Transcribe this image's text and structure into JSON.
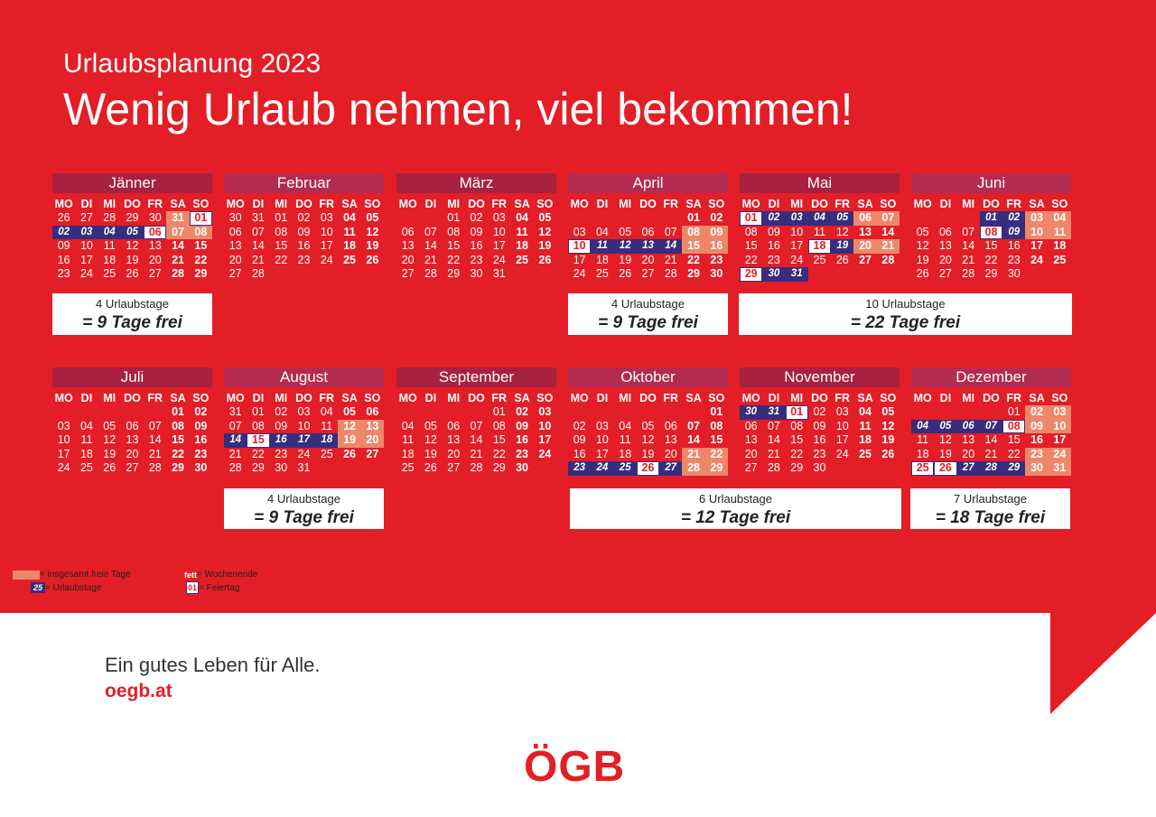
{
  "subtitle": "Urlaubsplanung 2023",
  "title": "Wenig Urlaub nehmen, viel bekommen!",
  "weekdays": [
    "MO",
    "DI",
    "MI",
    "DO",
    "FR",
    "SA",
    "SO"
  ],
  "colors": {
    "background": "#e31e26",
    "free": "#ee8769",
    "vacation": "#3a2c7c",
    "month_band_top": "#a8213f",
    "month_band_bottom": "#b02648"
  },
  "months": [
    {
      "name": "Jänner",
      "weeks": [
        [
          "26",
          "27",
          "28",
          "29",
          "30",
          "31:fb",
          "01:hb"
        ],
        [
          "02:u",
          "03:u",
          "04:u",
          "05:u",
          "06:hb",
          "07:fb",
          "08:fb"
        ],
        [
          "09",
          "10",
          "11",
          "12",
          "13",
          "14:b",
          "15:b"
        ],
        [
          "16",
          "17",
          "18",
          "19",
          "20",
          "21:b",
          "22:b"
        ],
        [
          "23",
          "24",
          "25",
          "26",
          "27",
          "28:b",
          "29:b"
        ]
      ]
    },
    {
      "name": "Februar",
      "weeks": [
        [
          "30",
          "31",
          "01",
          "02",
          "03",
          "04:b",
          "05:b"
        ],
        [
          "06",
          "07",
          "08",
          "09",
          "10",
          "11:b",
          "12:b"
        ],
        [
          "13",
          "14",
          "15",
          "16",
          "17",
          "18:b",
          "19:b"
        ],
        [
          "20",
          "21",
          "22",
          "23",
          "24",
          "25:b",
          "26:b"
        ],
        [
          "27",
          "28",
          "",
          "",
          "",
          "",
          ""
        ]
      ]
    },
    {
      "name": "März",
      "weeks": [
        [
          "",
          "",
          "01",
          "02",
          "03",
          "04:b",
          "05:b"
        ],
        [
          "06",
          "07",
          "08",
          "09",
          "10",
          "11:b",
          "12:b"
        ],
        [
          "13",
          "14",
          "15",
          "16",
          "17",
          "18:b",
          "19:b"
        ],
        [
          "20",
          "21",
          "22",
          "23",
          "24",
          "25:b",
          "26:b"
        ],
        [
          "27",
          "28",
          "29",
          "30",
          "31",
          "",
          ""
        ]
      ]
    },
    {
      "name": "April",
      "weeks": [
        [
          "",
          "",
          "",
          "",
          "",
          "01:b",
          "02:b"
        ],
        [
          "03",
          "04",
          "05",
          "06",
          "07",
          "08:fb",
          "09:fb"
        ],
        [
          "10:hb",
          "11:u",
          "12:u",
          "13:u",
          "14:u",
          "15:fb",
          "16:fb"
        ],
        [
          "17",
          "18",
          "19",
          "20",
          "21",
          "22:b",
          "23:b"
        ],
        [
          "24",
          "25",
          "26",
          "27",
          "28",
          "29:b",
          "30:b"
        ]
      ]
    },
    {
      "name": "Mai",
      "weeks": [
        [
          "01:hb",
          "02:u",
          "03:u",
          "04:u",
          "05:u",
          "06:fb",
          "07:fb"
        ],
        [
          "08",
          "09",
          "10",
          "11",
          "12",
          "13:b",
          "14:b"
        ],
        [
          "15",
          "16",
          "17",
          "18:hb",
          "19:u",
          "20:fb",
          "21:fb"
        ],
        [
          "22",
          "23",
          "24",
          "25",
          "26",
          "27:b",
          "28:b"
        ],
        [
          "29:hb",
          "30:u",
          "31:u",
          "",
          "",
          "",
          ""
        ]
      ]
    },
    {
      "name": "Juni",
      "weeks": [
        [
          "",
          "",
          "",
          "01:u",
          "02:u",
          "03:fb",
          "04:fb"
        ],
        [
          "05",
          "06",
          "07",
          "08:hb",
          "09:u",
          "10:fb",
          "11:fb"
        ],
        [
          "12",
          "13",
          "14",
          "15",
          "16",
          "17:b",
          "18:b"
        ],
        [
          "19",
          "20",
          "21",
          "22",
          "23",
          "24:b",
          "25:b"
        ],
        [
          "26",
          "27",
          "28",
          "29",
          "30",
          "",
          ""
        ]
      ]
    },
    {
      "name": "Juli",
      "weeks": [
        [
          "",
          "",
          "",
          "",
          "",
          "01:b",
          "02:b"
        ],
        [
          "03",
          "04",
          "05",
          "06",
          "07",
          "08:b",
          "09:b"
        ],
        [
          "10",
          "11",
          "12",
          "13",
          "14",
          "15:b",
          "16:b"
        ],
        [
          "17",
          "18",
          "19",
          "20",
          "21",
          "22:b",
          "23:b"
        ],
        [
          "24",
          "25",
          "26",
          "27",
          "28",
          "29:b",
          "30:b"
        ]
      ]
    },
    {
      "name": "August",
      "weeks": [
        [
          "31",
          "01",
          "02",
          "03",
          "04",
          "05:b",
          "06:b"
        ],
        [
          "07",
          "08",
          "09",
          "10",
          "11",
          "12:fb",
          "13:fb"
        ],
        [
          "14:u",
          "15:hb",
          "16:u",
          "17:u",
          "18:u",
          "19:fb",
          "20:fb"
        ],
        [
          "21",
          "22",
          "23",
          "24",
          "25",
          "26:b",
          "27:b"
        ],
        [
          "28",
          "29",
          "30",
          "31",
          "",
          "",
          ""
        ]
      ]
    },
    {
      "name": "September",
      "weeks": [
        [
          "",
          "",
          "",
          "",
          "01",
          "02:b",
          "03:b"
        ],
        [
          "04",
          "05",
          "06",
          "07",
          "08",
          "09:b",
          "10:b"
        ],
        [
          "11",
          "12",
          "13",
          "14",
          "15",
          "16:b",
          "17:b"
        ],
        [
          "18",
          "19",
          "20",
          "21",
          "22",
          "23:b",
          "24:b"
        ],
        [
          "25",
          "26",
          "27",
          "28",
          "29",
          "30:b",
          ""
        ]
      ]
    },
    {
      "name": "Oktober",
      "weeks": [
        [
          "",
          "",
          "",
          "",
          "",
          "",
          "01:b"
        ],
        [
          "02",
          "03",
          "04",
          "05",
          "06",
          "07:b",
          "08:b"
        ],
        [
          "09",
          "10",
          "11",
          "12",
          "13",
          "14:b",
          "15:b"
        ],
        [
          "16",
          "17",
          "18",
          "19",
          "20",
          "21:fb",
          "22:fb"
        ],
        [
          "23:u",
          "24:u",
          "25:u",
          "26:hb",
          "27:u",
          "28:fb",
          "29:fb"
        ]
      ]
    },
    {
      "name": "November",
      "weeks": [
        [
          "30:u",
          "31:u",
          "01:hb",
          "02",
          "03",
          "04:b",
          "05:b"
        ],
        [
          "06",
          "07",
          "08",
          "09",
          "10",
          "11:b",
          "12:b"
        ],
        [
          "13",
          "14",
          "15",
          "16",
          "17",
          "18:b",
          "19:b"
        ],
        [
          "20",
          "21",
          "22",
          "23",
          "24",
          "25:b",
          "26:b"
        ],
        [
          "27",
          "28",
          "29",
          "30",
          "",
          "",
          ""
        ]
      ]
    },
    {
      "name": "Dezember",
      "weeks": [
        [
          "",
          "",
          "",
          "",
          "01",
          "02:fb",
          "03:fb"
        ],
        [
          "04:u",
          "05:u",
          "06:u",
          "07:u",
          "08:hb",
          "09:fb",
          "10:fb"
        ],
        [
          "11",
          "12",
          "13",
          "14",
          "15",
          "16:b",
          "17:b"
        ],
        [
          "18",
          "19",
          "20",
          "21",
          "22",
          "23:fb",
          "24:fb"
        ],
        [
          "25:hb",
          "26:hb",
          "27:u",
          "28:u",
          "29:u",
          "30:fb",
          "31:fb"
        ]
      ]
    }
  ],
  "summaries": [
    {
      "days": "4 Urlaubstage",
      "free": "= 9 Tage frei"
    },
    {
      "days": "4 Urlaubstage",
      "free": "= 9 Tage frei"
    },
    {
      "days": "10 Urlaubstage",
      "free": "= 22 Tage frei"
    },
    {
      "days": "4 Urlaubstage",
      "free": "= 9 Tage frei"
    },
    {
      "days": "6 Urlaubstage",
      "free": "= 12 Tage frei"
    },
    {
      "days": "7 Urlaubstage",
      "free": "= 18 Tage frei"
    }
  ],
  "legend": {
    "free_label": "= insgesamt freie Tage",
    "vacation_sample": "25",
    "vacation_label": "= Urlaubstage",
    "bold_sample": "fett",
    "bold_label": "= Wochenende",
    "holiday_sample": "01",
    "holiday_label": "= Feiertag"
  },
  "footer": {
    "slogan": "Ein gutes Leben für Alle.",
    "url": "oegb.at",
    "logo": "ÖGB"
  }
}
